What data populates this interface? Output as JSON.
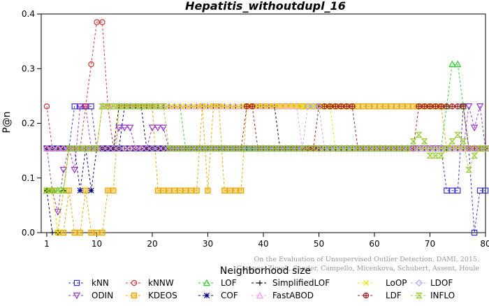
{
  "chart_data": {
    "type": "line",
    "title": "Hepatitis_withoutdupl_16",
    "xlabel": "Neighborhood size",
    "ylabel": "P@n",
    "xlim": [
      0,
      80
    ],
    "ylim": [
      0,
      0.4
    ],
    "xticks": [
      1,
      10,
      20,
      30,
      40,
      50,
      60,
      70,
      80
    ],
    "yticks": [
      0.0,
      0.1,
      0.2,
      0.3,
      0.4
    ],
    "grid": false,
    "legend_position": "bottom",
    "watermark": [
      "Campos, Zimek, Sander, Campello, Micenkova, Schubert, Assent, Houle",
      "On the Evaluation of Unsupervised Outlier Detection. DAMI, 2015."
    ],
    "series": [
      {
        "name": "kNN",
        "color": "#3333cc",
        "marker": "square",
        "values": [
          [
            1,
            0.154
          ],
          [
            2,
            0.154
          ],
          [
            5,
            0.154
          ],
          [
            6,
            0.231
          ],
          [
            7,
            0.231
          ],
          [
            8,
            0.231
          ],
          [
            9,
            0.231
          ],
          [
            10,
            0.154
          ],
          [
            20,
            0.154
          ],
          [
            40,
            0.154
          ],
          [
            60,
            0.154
          ],
          [
            70,
            0.154
          ],
          [
            72,
            0.154
          ],
          [
            73,
            0.077
          ],
          [
            75,
            0.077
          ],
          [
            76,
            0.231
          ],
          [
            77,
            0.154
          ],
          [
            78,
            0.0
          ],
          [
            79,
            0.077
          ],
          [
            80,
            0.077
          ]
        ]
      },
      {
        "name": "ODIN",
        "color": "#9933cc",
        "marker": "triangle-down",
        "values": [
          [
            1,
            0.154
          ],
          [
            2,
            0.077
          ],
          [
            3,
            0.038
          ],
          [
            4,
            0.115
          ],
          [
            5,
            0.154
          ],
          [
            6,
            0.115
          ],
          [
            7,
            0.231
          ],
          [
            8,
            0.231
          ],
          [
            9,
            0.154
          ],
          [
            10,
            0.154
          ],
          [
            12,
            0.154
          ],
          [
            13,
            0.154
          ],
          [
            14,
            0.192
          ],
          [
            15,
            0.192
          ],
          [
            16,
            0.192
          ],
          [
            17,
            0.154
          ],
          [
            18,
            0.154
          ],
          [
            19,
            0.154
          ],
          [
            20,
            0.192
          ],
          [
            21,
            0.192
          ],
          [
            22,
            0.192
          ],
          [
            23,
            0.154
          ],
          [
            24,
            0.154
          ],
          [
            40,
            0.154
          ],
          [
            60,
            0.154
          ],
          [
            76,
            0.154
          ],
          [
            77,
            0.231
          ],
          [
            78,
            0.192
          ],
          [
            79,
            0.231
          ],
          [
            80,
            0.154
          ]
        ]
      },
      {
        "name": "kNNW",
        "color": "#cc3333",
        "marker": "circle",
        "values": [
          [
            1,
            0.231
          ],
          [
            2,
            0.154
          ],
          [
            5,
            0.154
          ],
          [
            8,
            0.231
          ],
          [
            9,
            0.308
          ],
          [
            10,
            0.385
          ],
          [
            11,
            0.385
          ],
          [
            12,
            0.231
          ],
          [
            13,
            0.154
          ],
          [
            20,
            0.154
          ],
          [
            40,
            0.154
          ],
          [
            60,
            0.154
          ],
          [
            80,
            0.154
          ]
        ]
      },
      {
        "name": "KDEOS",
        "color": "#e6a800",
        "marker": "square-filled",
        "values": [
          [
            1,
            0.077
          ],
          [
            2,
            0.077
          ],
          [
            3,
            0.0
          ],
          [
            4,
            0.0
          ],
          [
            5,
            0.077
          ],
          [
            6,
            0.0
          ],
          [
            7,
            0.0
          ],
          [
            8,
            0.077
          ],
          [
            9,
            0.0
          ],
          [
            10,
            0.0
          ],
          [
            11,
            0.0
          ],
          [
            12,
            0.077
          ],
          [
            13,
            0.077
          ],
          [
            14,
            0.231
          ],
          [
            20,
            0.231
          ],
          [
            21,
            0.077
          ],
          [
            22,
            0.077
          ],
          [
            23,
            0.077
          ],
          [
            24,
            0.077
          ],
          [
            25,
            0.077
          ],
          [
            26,
            0.077
          ],
          [
            27,
            0.077
          ],
          [
            28,
            0.077
          ],
          [
            29,
            0.231
          ],
          [
            30,
            0.077
          ],
          [
            31,
            0.231
          ],
          [
            32,
            0.231
          ],
          [
            33,
            0.077
          ],
          [
            34,
            0.077
          ],
          [
            35,
            0.077
          ],
          [
            36,
            0.077
          ],
          [
            37,
            0.231
          ],
          [
            40,
            0.231
          ],
          [
            50,
            0.231
          ],
          [
            60,
            0.231
          ],
          [
            70,
            0.231
          ],
          [
            72,
            0.231
          ],
          [
            73,
            0.154
          ],
          [
            80,
            0.154
          ]
        ]
      },
      {
        "name": "LOF",
        "color": "#33cc33",
        "marker": "triangle",
        "values": [
          [
            1,
            0.077
          ],
          [
            2,
            0.077
          ],
          [
            3,
            0.077
          ],
          [
            4,
            0.077
          ],
          [
            5,
            0.154
          ],
          [
            6,
            0.154
          ],
          [
            7,
            0.154
          ],
          [
            8,
            0.154
          ],
          [
            9,
            0.154
          ],
          [
            10,
            0.154
          ],
          [
            11,
            0.231
          ],
          [
            20,
            0.231
          ],
          [
            25,
            0.231
          ],
          [
            26,
            0.154
          ],
          [
            40,
            0.154
          ],
          [
            60,
            0.154
          ],
          [
            70,
            0.154
          ],
          [
            73,
            0.231
          ],
          [
            74,
            0.308
          ],
          [
            75,
            0.308
          ],
          [
            76,
            0.231
          ],
          [
            77,
            0.154
          ],
          [
            80,
            0.154
          ]
        ]
      },
      {
        "name": "COF",
        "color": "#000080",
        "marker": "asterisk",
        "values": [
          [
            1,
            0.154
          ],
          [
            2,
            0.154
          ],
          [
            3,
            0.154
          ],
          [
            4,
            0.154
          ],
          [
            5,
            0.154
          ],
          [
            6,
            0.154
          ],
          [
            7,
            0.077
          ],
          [
            8,
            0.154
          ],
          [
            9,
            0.077
          ],
          [
            10,
            0.154
          ],
          [
            14,
            0.154
          ],
          [
            15,
            0.231
          ],
          [
            16,
            0.231
          ],
          [
            17,
            0.231
          ],
          [
            18,
            0.231
          ],
          [
            19,
            0.154
          ],
          [
            20,
            0.154
          ],
          [
            40,
            0.154
          ],
          [
            60,
            0.154
          ],
          [
            80,
            0.154
          ]
        ]
      },
      {
        "name": "SimplifiedLOF",
        "color": "#000000",
        "marker": "plus",
        "values": [
          [
            1,
            0.077
          ],
          [
            2,
            0.0
          ],
          [
            3,
            0.0
          ],
          [
            4,
            0.077
          ],
          [
            5,
            0.154
          ],
          [
            6,
            0.154
          ],
          [
            7,
            0.154
          ],
          [
            8,
            0.154
          ],
          [
            9,
            0.154
          ],
          [
            10,
            0.154
          ],
          [
            11,
            0.154
          ],
          [
            12,
            0.154
          ],
          [
            13,
            0.154
          ],
          [
            14,
            0.231
          ],
          [
            20,
            0.231
          ],
          [
            30,
            0.231
          ],
          [
            40,
            0.231
          ],
          [
            42,
            0.231
          ],
          [
            43,
            0.154
          ],
          [
            60,
            0.154
          ],
          [
            80,
            0.154
          ]
        ]
      },
      {
        "name": "FastABOD",
        "color": "#ff99ff",
        "marker": "triangle",
        "values": [
          [
            1,
            0.154
          ],
          [
            10,
            0.154
          ],
          [
            11,
            0.231
          ],
          [
            20,
            0.231
          ],
          [
            30,
            0.231
          ],
          [
            40,
            0.231
          ],
          [
            46,
            0.231
          ],
          [
            47,
            0.154
          ],
          [
            60,
            0.154
          ],
          [
            80,
            0.154
          ]
        ]
      },
      {
        "name": "LoOP",
        "color": "#e6e600",
        "marker": "cross",
        "values": [
          [
            1,
            0.077
          ],
          [
            2,
            0.077
          ],
          [
            3,
            0.0
          ],
          [
            4,
            0.077
          ],
          [
            5,
            0.154
          ],
          [
            10,
            0.154
          ],
          [
            11,
            0.231
          ],
          [
            20,
            0.231
          ],
          [
            30,
            0.231
          ],
          [
            40,
            0.231
          ],
          [
            50,
            0.231
          ],
          [
            52,
            0.231
          ],
          [
            53,
            0.154
          ],
          [
            60,
            0.154
          ],
          [
            80,
            0.154
          ]
        ]
      },
      {
        "name": "LDF",
        "color": "#a02020",
        "marker": "circle-plus",
        "values": [
          [
            1,
            0.154
          ],
          [
            10,
            0.154
          ],
          [
            20,
            0.154
          ],
          [
            36,
            0.154
          ],
          [
            37,
            0.231
          ],
          [
            38,
            0.231
          ],
          [
            39,
            0.154
          ],
          [
            40,
            0.154
          ],
          [
            50,
            0.231
          ],
          [
            56,
            0.231
          ],
          [
            57,
            0.154
          ],
          [
            60,
            0.154
          ],
          [
            68,
            0.231
          ],
          [
            70,
            0.231
          ],
          [
            71,
            0.231
          ],
          [
            72,
            0.231
          ],
          [
            73,
            0.231
          ],
          [
            74,
            0.231
          ],
          [
            75,
            0.231
          ],
          [
            76,
            0.231
          ],
          [
            77,
            0.154
          ],
          [
            80,
            0.154
          ]
        ]
      },
      {
        "name": "LDOF",
        "color": "#aaaaff",
        "marker": "diamond",
        "values": [
          [
            1,
            0.154
          ],
          [
            10,
            0.154
          ],
          [
            20,
            0.154
          ],
          [
            40,
            0.154
          ],
          [
            47,
            0.154
          ],
          [
            48,
            0.231
          ],
          [
            50,
            0.231
          ],
          [
            51,
            0.154
          ],
          [
            60,
            0.154
          ],
          [
            80,
            0.154
          ]
        ]
      },
      {
        "name": "INFLO",
        "color": "#99cc33",
        "marker": "hourglass",
        "values": [
          [
            1,
            0.077
          ],
          [
            2,
            0.077
          ],
          [
            3,
            0.077
          ],
          [
            4,
            0.077
          ],
          [
            5,
            0.154
          ],
          [
            10,
            0.154
          ],
          [
            11,
            0.231
          ],
          [
            20,
            0.231
          ],
          [
            22,
            0.231
          ],
          [
            23,
            0.154
          ],
          [
            40,
            0.154
          ],
          [
            60,
            0.154
          ],
          [
            66,
            0.154
          ],
          [
            67,
            0.167
          ],
          [
            68,
            0.179
          ],
          [
            69,
            0.167
          ],
          [
            70,
            0.141
          ],
          [
            71,
            0.141
          ],
          [
            72,
            0.141
          ],
          [
            73,
            0.154
          ],
          [
            74,
            0.167
          ],
          [
            75,
            0.179
          ],
          [
            76,
            0.167
          ],
          [
            77,
            0.115
          ],
          [
            78,
            0.141
          ],
          [
            79,
            0.154
          ],
          [
            80,
            0.154
          ]
        ]
      }
    ]
  }
}
